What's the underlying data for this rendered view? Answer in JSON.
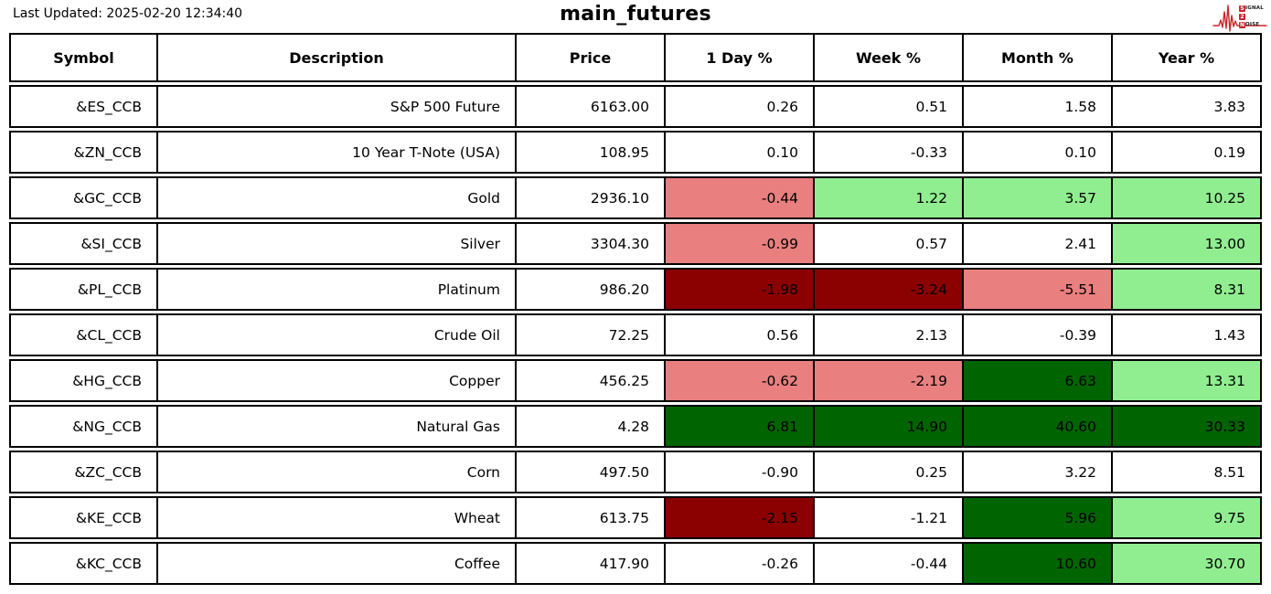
{
  "header": {
    "last_updated": "Last Updated: 2025-02-20 12:34:40",
    "title": "main_futures"
  },
  "logo": {
    "word1_initial": "S",
    "word1_rest": "IGNAL",
    "word2_initial": "2",
    "word2_rest": "",
    "word3_initial": "N",
    "word3_rest": "OISE",
    "accent_color": "#c8252c"
  },
  "colors": {
    "white": "#ffffff",
    "lightred": "#e97f7f",
    "lightgreen": "#90ee90",
    "darkred": "#8b0000",
    "darkgreen": "#006400"
  },
  "chart_data": {
    "type": "table",
    "title": "main_futures",
    "columns": [
      "Symbol",
      "Description",
      "Price",
      "1 Day %",
      "Week %",
      "Month %",
      "Year %"
    ],
    "rows": [
      {
        "symbol": "&ES_CCB",
        "description": "S&P 500 Future",
        "price": "6163.00",
        "values": [
          "0.26",
          "0.51",
          "1.58",
          "3.83"
        ],
        "bg": [
          "white",
          "white",
          "white",
          "white"
        ]
      },
      {
        "symbol": "&ZN_CCB",
        "description": "10 Year T-Note (USA)",
        "price": "108.95",
        "values": [
          "0.10",
          "-0.33",
          "0.10",
          "0.19"
        ],
        "bg": [
          "white",
          "white",
          "white",
          "white"
        ]
      },
      {
        "symbol": "&GC_CCB",
        "description": "Gold",
        "price": "2936.10",
        "values": [
          "-0.44",
          "1.22",
          "3.57",
          "10.25"
        ],
        "bg": [
          "lightred",
          "lightgreen",
          "lightgreen",
          "lightgreen"
        ]
      },
      {
        "symbol": "&SI_CCB",
        "description": "Silver",
        "price": "3304.30",
        "values": [
          "-0.99",
          "0.57",
          "2.41",
          "13.00"
        ],
        "bg": [
          "lightred",
          "white",
          "white",
          "lightgreen"
        ]
      },
      {
        "symbol": "&PL_CCB",
        "description": "Platinum",
        "price": "986.20",
        "values": [
          "-1.98",
          "-3.24",
          "-5.51",
          "8.31"
        ],
        "bg": [
          "darkred",
          "darkred",
          "lightred",
          "lightgreen"
        ]
      },
      {
        "symbol": "&CL_CCB",
        "description": "Crude Oil",
        "price": "72.25",
        "values": [
          "0.56",
          "2.13",
          "-0.39",
          "1.43"
        ],
        "bg": [
          "white",
          "white",
          "white",
          "white"
        ]
      },
      {
        "symbol": "&HG_CCB",
        "description": "Copper",
        "price": "456.25",
        "values": [
          "-0.62",
          "-2.19",
          "6.63",
          "13.31"
        ],
        "bg": [
          "lightred",
          "lightred",
          "darkgreen",
          "lightgreen"
        ]
      },
      {
        "symbol": "&NG_CCB",
        "description": "Natural Gas",
        "price": "4.28",
        "values": [
          "6.81",
          "14.90",
          "40.60",
          "30.33"
        ],
        "bg": [
          "darkgreen",
          "darkgreen",
          "darkgreen",
          "darkgreen"
        ]
      },
      {
        "symbol": "&ZC_CCB",
        "description": "Corn",
        "price": "497.50",
        "values": [
          "-0.90",
          "0.25",
          "3.22",
          "8.51"
        ],
        "bg": [
          "white",
          "white",
          "white",
          "white"
        ]
      },
      {
        "symbol": "&KE_CCB",
        "description": "Wheat",
        "price": "613.75",
        "values": [
          "-2.15",
          "-1.21",
          "5.96",
          "9.75"
        ],
        "bg": [
          "darkred",
          "white",
          "darkgreen",
          "lightgreen"
        ]
      },
      {
        "symbol": "&KC_CCB",
        "description": "Coffee",
        "price": "417.90",
        "values": [
          "-0.26",
          "-0.44",
          "10.60",
          "30.70"
        ],
        "bg": [
          "white",
          "white",
          "darkgreen",
          "lightgreen"
        ]
      }
    ]
  }
}
